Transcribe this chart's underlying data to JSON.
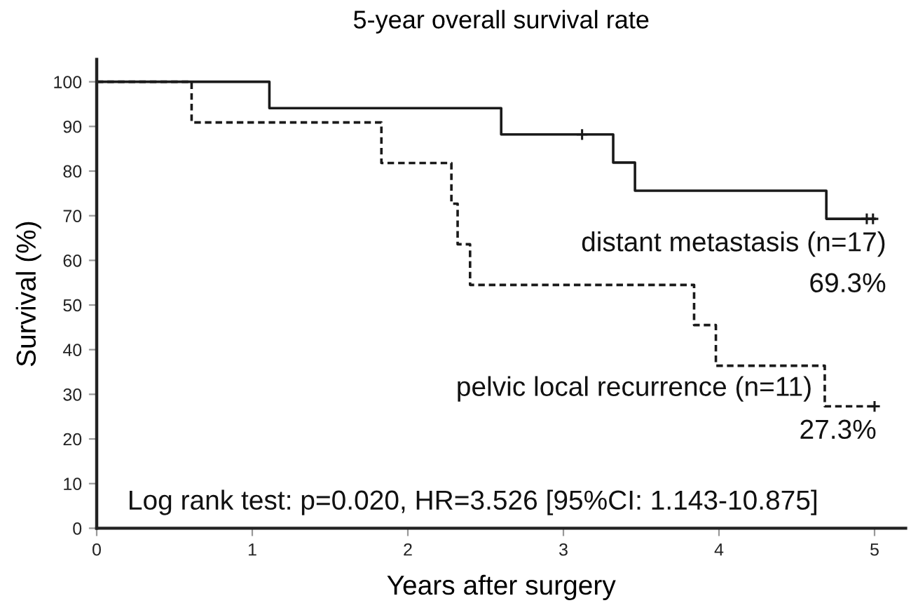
{
  "chart_data": {
    "type": "step",
    "title": "5-year overall survival rate",
    "xlabel": "Years after surgery",
    "ylabel": "Survival (%)",
    "xlim": [
      0,
      5.2
    ],
    "ylim": [
      0,
      105
    ],
    "xticks": [
      0,
      1,
      2,
      3,
      4,
      5
    ],
    "yticks": [
      0,
      10,
      20,
      30,
      40,
      50,
      60,
      70,
      80,
      90,
      100
    ],
    "grid": false,
    "series": [
      {
        "name": "distant metastasis (n=17)",
        "color": "#1a1a1a",
        "line_style": "solid",
        "x": [
          0,
          1.11,
          2.6,
          3.32,
          3.46,
          4.69,
          5.0
        ],
        "values": [
          100,
          94.1,
          88.2,
          81.9,
          75.6,
          69.3,
          69.3
        ]
      },
      {
        "type": "scatter",
        "marker": "cross",
        "color": "#1a1a1a",
        "x": [
          3.12,
          4.95,
          4.99
        ],
        "values": [
          88.2,
          69.3,
          69.3
        ]
      },
      {
        "name": "pelvic local recurrence (n=11)",
        "color": "#1a1a1a",
        "line_style": "dashed",
        "x": [
          0,
          0.61,
          1.83,
          2.28,
          2.32,
          2.4,
          3.84,
          3.98,
          4.68,
          5.0
        ],
        "values": [
          100,
          90.9,
          81.8,
          72.7,
          63.6,
          54.5,
          45.5,
          36.4,
          27.3,
          27.3
        ]
      },
      {
        "type": "scatter",
        "marker": "cross",
        "color": "#1a1a1a",
        "x": [
          5.0
        ],
        "values": [
          27.3
        ]
      }
    ],
    "annotations": [
      "Log rank test: p=0.020, HR=3.526 [95%CI: 1.143-10.875]",
      {
        "text": "69.3%",
        "x": 5.0,
        "y": 69.3
      },
      {
        "text": "27.3%",
        "x": 5.0,
        "y": 27.3
      }
    ]
  }
}
